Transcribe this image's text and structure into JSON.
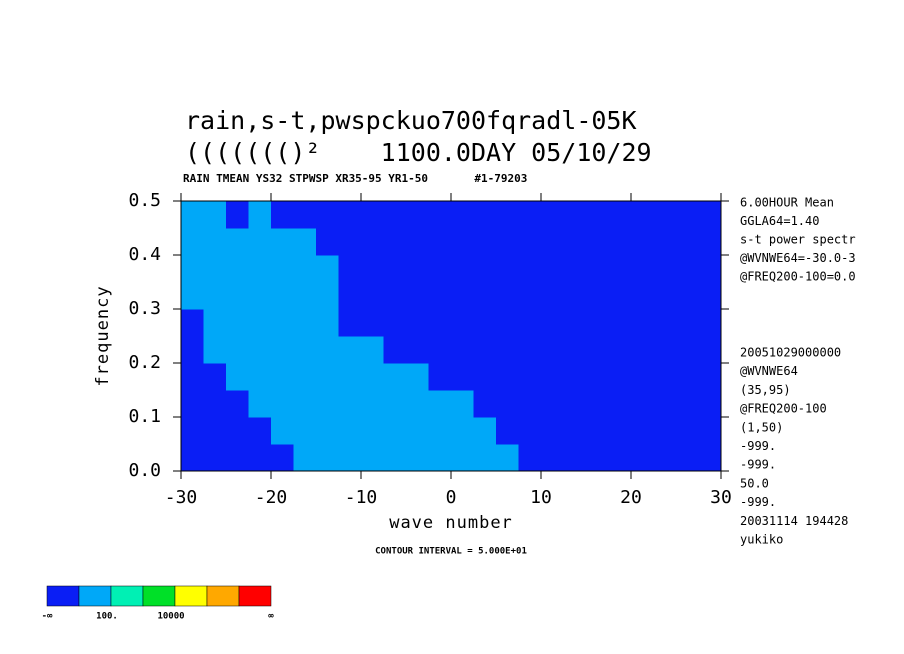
{
  "chart_data": {
    "type": "contour",
    "title": "rain,s-t,pwspckuo700fqradl-05K",
    "subtitle": "((((((()²    1100.0DAY 05/10/29",
    "header": "RAIN TMEAN YS32 STPWSP XR35-95 YR1-50       #1-79203",
    "x_label": "wave number",
    "y_label": "frequency",
    "footer": "CONTOUR INTERVAL = 5.000E+01",
    "side_text_top": [
      "6.00HOUR Mean",
      "GGLA64=1.40",
      "s-t power spectr",
      "@WVNWE64=-30.0-3",
      "@FREQ200-100=0.0"
    ],
    "side_text_bottom": [
      "20051029000000",
      "@WVNWE64",
      "(35,95)",
      "@FREQ200-100",
      "(1,50)",
      "-999.",
      "-999.",
      "50.0",
      "-999.",
      "20031114 194428",
      "yukiko"
    ],
    "xlim": [
      -30,
      30
    ],
    "ylim": [
      0,
      0.5
    ],
    "xticks": [
      -30,
      -20,
      -10,
      0,
      10,
      20,
      30
    ],
    "yticks": [
      {
        "value": 0,
        "label": "0.0"
      },
      0.1,
      0.2,
      0.3,
      0.4,
      0.5
    ],
    "cell_x": 2.5,
    "cell_y": 0.05,
    "levels": [
      [
        0,
        0,
        0,
        0,
        0,
        1,
        1,
        1,
        1,
        1,
        1,
        1,
        1,
        1,
        1,
        0,
        0,
        0,
        0,
        0,
        0,
        0,
        0,
        0
      ],
      [
        0,
        0,
        0,
        0,
        1,
        1,
        1,
        1,
        1,
        1,
        1,
        1,
        1,
        1,
        0,
        0,
        0,
        0,
        0,
        0,
        0,
        0,
        0,
        0
      ],
      [
        0,
        0,
        0,
        1,
        1,
        1,
        1,
        1,
        1,
        1,
        1,
        1,
        1,
        0,
        0,
        0,
        0,
        0,
        0,
        0,
        0,
        0,
        0,
        0
      ],
      [
        0,
        0,
        1,
        1,
        1,
        1,
        1,
        1,
        1,
        1,
        1,
        0,
        0,
        0,
        0,
        0,
        0,
        0,
        0,
        0,
        0,
        0,
        0,
        0
      ],
      [
        0,
        1,
        1,
        1,
        1,
        1,
        1,
        1,
        1,
        0,
        0,
        0,
        0,
        0,
        0,
        0,
        0,
        0,
        0,
        0,
        0,
        0,
        0,
        0
      ],
      [
        0,
        1,
        1,
        1,
        1,
        1,
        1,
        0,
        0,
        0,
        0,
        0,
        0,
        0,
        0,
        0,
        0,
        0,
        0,
        0,
        0,
        0,
        0,
        0
      ],
      [
        1,
        1,
        1,
        1,
        1,
        1,
        1,
        0,
        0,
        0,
        0,
        0,
        0,
        0,
        0,
        0,
        0,
        0,
        0,
        0,
        0,
        0,
        0,
        0
      ],
      [
        1,
        1,
        1,
        1,
        1,
        1,
        1,
        0,
        0,
        0,
        0,
        0,
        0,
        0,
        0,
        0,
        0,
        0,
        0,
        0,
        0,
        0,
        0,
        0
      ],
      [
        1,
        1,
        1,
        1,
        1,
        1,
        0,
        0,
        0,
        0,
        0,
        0,
        0,
        0,
        0,
        0,
        0,
        0,
        0,
        0,
        0,
        0,
        0,
        0
      ],
      [
        1,
        1,
        0,
        1,
        0,
        0,
        0,
        0,
        0,
        0,
        0,
        0,
        0,
        0,
        0,
        0,
        0,
        0,
        0,
        0,
        0,
        0,
        0,
        0
      ]
    ],
    "colors": [
      "#0a1ef5",
      "#00a8f8",
      "#00f0b4",
      "#00e028",
      "#ffff00",
      "#ffa800",
      "#ff0000"
    ],
    "colorbar_labels": [
      "-∞",
      "100.",
      "10000",
      "∞"
    ]
  }
}
